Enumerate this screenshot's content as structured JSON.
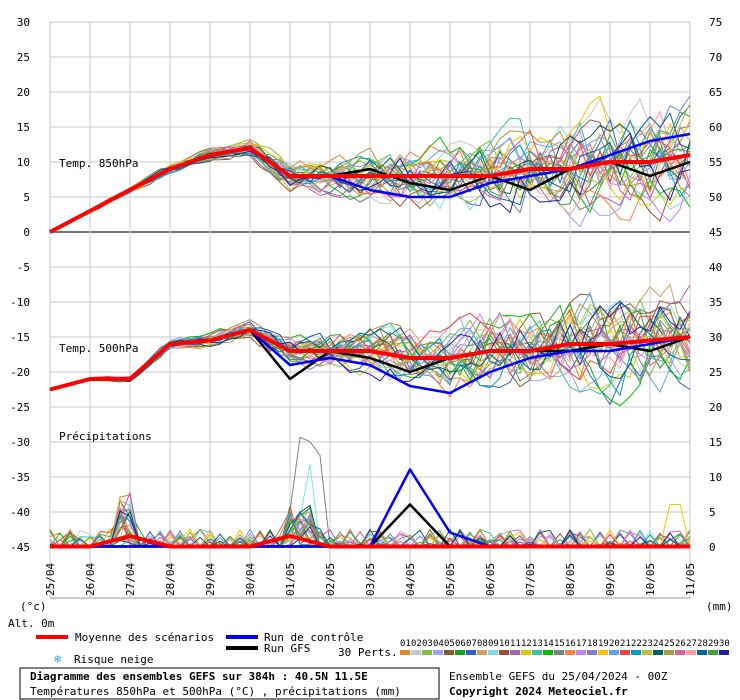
{
  "chart_data": {
    "type": "line",
    "x_dates": [
      "25/04",
      "26/04",
      "27/04",
      "28/04",
      "29/04",
      "30/04",
      "01/05",
      "02/05",
      "03/05",
      "04/05",
      "05/05",
      "06/05",
      "07/05",
      "08/05",
      "09/05",
      "10/05",
      "11/05"
    ],
    "left_axis_ticks": [
      30,
      25,
      20,
      15,
      10,
      5,
      0,
      -5,
      -10,
      -15,
      -20,
      -25,
      -30,
      -35,
      -40,
      -45
    ],
    "right_axis_ticks": [
      75,
      70,
      65,
      60,
      55,
      50,
      45,
      40,
      35,
      30,
      25,
      20,
      15,
      10,
      5,
      0
    ],
    "panels": {
      "t850": {
        "label": "Temp. 850hPa"
      },
      "t500": {
        "label": "Temp. 500hPa"
      },
      "precip": {
        "label": "Précipitations"
      }
    },
    "series": [
      {
        "name": "Moyenne des scénarios",
        "panel": "t850",
        "color": "#ff0000",
        "values": [
          0,
          3,
          6,
          9,
          11,
          12,
          8,
          8,
          8,
          8,
          8,
          8,
          9,
          9,
          10,
          10,
          11
        ]
      },
      {
        "name": "Run de contrôle",
        "panel": "t850",
        "color": "#0000ff",
        "values": [
          0,
          3,
          6,
          9,
          11,
          12,
          8,
          8,
          6,
          5,
          5,
          7,
          8,
          9,
          11,
          13,
          14
        ]
      },
      {
        "name": "Run GFS",
        "panel": "t850",
        "color": "#000000",
        "values": [
          0,
          3,
          6,
          9,
          11,
          12,
          8,
          8,
          9,
          7,
          6,
          8,
          6,
          9,
          10,
          8,
          10
        ]
      },
      {
        "name": "Moyenne des scénarios",
        "panel": "t500",
        "color": "#ff0000",
        "values": [
          -22.5,
          -21,
          -21,
          -16,
          -15.5,
          -14,
          -17,
          -17,
          -17,
          -18,
          -18,
          -17,
          -17,
          -16,
          -16,
          -15.5,
          -15
        ]
      },
      {
        "name": "Run de contrôle",
        "panel": "t500",
        "color": "#0000ff",
        "values": [
          -22.5,
          -21,
          -21,
          -16,
          -15.5,
          -14,
          -19,
          -18,
          -19,
          -22,
          -23,
          -20,
          -18,
          -17,
          -17,
          -16,
          -15
        ]
      },
      {
        "name": "Run GFS",
        "panel": "t500",
        "color": "#000000",
        "values": [
          -22.5,
          -21,
          -21,
          -16,
          -15.5,
          -14,
          -21,
          -17,
          -18,
          -20,
          -18,
          -17,
          -17,
          -17,
          -16,
          -17,
          -15
        ]
      },
      {
        "name": "Moyenne des scénarios",
        "panel": "precip",
        "color": "#ff0000",
        "values": [
          0,
          0,
          1.5,
          0,
          0,
          0,
          1.5,
          0,
          0,
          0,
          0,
          0,
          0,
          0,
          0,
          0,
          0
        ]
      },
      {
        "name": "Run de contrôle",
        "panel": "precip",
        "color": "#0000ff",
        "values": [
          0,
          0,
          0,
          0,
          0,
          0,
          0,
          0,
          0,
          11,
          2,
          0,
          0,
          0,
          0,
          0,
          0
        ]
      },
      {
        "name": "Run GFS",
        "panel": "precip",
        "color": "#000000",
        "values": [
          0,
          0,
          0,
          0,
          0,
          0,
          0,
          0,
          0,
          6,
          0,
          0,
          0,
          0,
          0,
          0,
          0
        ]
      }
    ],
    "precip_peaks": [
      15,
      12.5,
      13
    ],
    "members": 30,
    "member_colors": [
      "#e8822a",
      "#c8c8c8",
      "#80c040",
      "#a0a0ff",
      "#8c5a2a",
      "#20a020",
      "#3060d0",
      "#d0a060",
      "#80e0e0",
      "#a05030",
      "#b060b0",
      "#d0d000",
      "#40c0a0",
      "#00c000",
      "#808080",
      "#ff8040",
      "#c080ff",
      "#8080c0",
      "#ffc000",
      "#60a0ff",
      "#ff4040",
      "#00a0c0",
      "#c0c040",
      "#006060",
      "#a0a040",
      "#e060a0",
      "#ffa0a0",
      "#0060a0",
      "#40a040",
      "#2020a0"
    ]
  },
  "axis_units": {
    "left": "(°c)",
    "right": "(mm)",
    "alt": "Alt. 0m"
  },
  "legend": {
    "mean": "Moyenne des scénarios",
    "control": "Run de contrôle",
    "gfs": "Run GFS",
    "snow": "Risque neige",
    "perts": "30 Perts.",
    "pert_numbers": [
      "01",
      "02",
      "03",
      "04",
      "05",
      "06",
      "07",
      "08",
      "09",
      "10",
      "11",
      "12",
      "13",
      "14",
      "15",
      "16",
      "17",
      "18",
      "19",
      "20",
      "21",
      "22",
      "23",
      "24",
      "25",
      "26",
      "27",
      "28",
      "29",
      "30"
    ]
  },
  "footer": {
    "title": "Diagramme des ensembles GEFS sur 384h : 40.5N 11.5E",
    "subtitle": "Températures 850hPa et 500hPa (°C) , précipitations (mm)",
    "run": "Ensemble GEFS du 25/04/2024 - 00Z",
    "copyright": "Copyright 2024 Meteociel.fr"
  }
}
